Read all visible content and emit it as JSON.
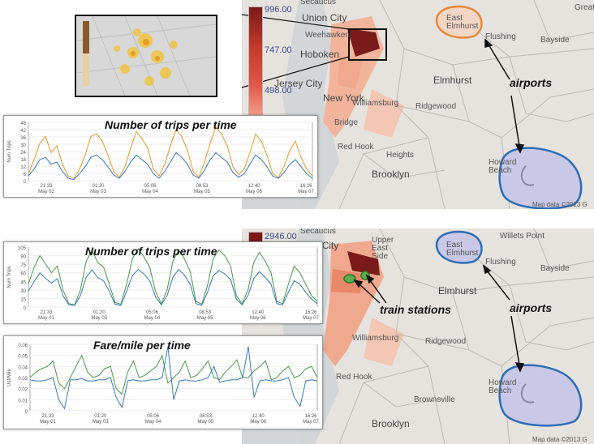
{
  "top_map": {
    "legend": [
      "996.00",
      "747.00",
      "498.00"
    ],
    "labels": [
      "Secaucus",
      "Union City",
      "Weehawken",
      "Hoboken",
      "Jersey City",
      "New York",
      "Brooklyn",
      "Heights",
      "Elmhurst",
      "East Elmhurst",
      "Flushing",
      "Bayside",
      "Howard Beach",
      "Ridgewood",
      "Williamsburg",
      "Red Hook",
      "Bridge",
      "Great"
    ],
    "callout_airports": "airports",
    "attribution": "Map data ©2013 G",
    "colors": {
      "legend_dark": "#7a1a1a",
      "legend_mid": "#d94a3a",
      "legend_light": "#f4a08a",
      "airport_laguardia": "#e8883a",
      "airport_jfk": "#2e6db4"
    }
  },
  "top_chart": {
    "title": "Number of trips per time",
    "ylabel": "Num Trips",
    "chart_data": {
      "type": "line",
      "title": "Number of trips per time",
      "ylabel": "Num Trips",
      "xlabel": "",
      "ylim": [
        0,
        50
      ],
      "y_ticks": [
        "48",
        "42",
        "36",
        "30",
        "24",
        "18",
        "12",
        "6",
        "0"
      ],
      "x_ticks": [
        [
          "21:33",
          "May 02"
        ],
        [
          "01:20",
          "May 03"
        ],
        [
          "05:06",
          "May 04"
        ],
        [
          "08:53",
          "May 05"
        ],
        [
          "12:40",
          "May 06"
        ],
        [
          "16:26",
          "May 07"
        ]
      ],
      "series": [
        {
          "color": "#e89a30",
          "values": [
            6,
            18,
            32,
            38,
            24,
            30,
            14,
            4,
            2,
            10,
            22,
            38,
            40,
            34,
            22,
            8,
            3,
            12,
            28,
            42,
            36,
            28,
            10,
            4,
            14,
            30,
            44,
            38,
            26,
            8,
            3,
            16,
            32,
            46,
            40,
            30,
            12,
            5,
            10,
            24,
            40,
            34,
            22,
            6,
            3,
            12,
            26,
            34,
            20,
            10,
            4
          ]
        },
        {
          "color": "#3a7ab8",
          "values": [
            4,
            10,
            18,
            20,
            14,
            16,
            8,
            2,
            1,
            6,
            12,
            20,
            22,
            18,
            12,
            5,
            2,
            8,
            16,
            22,
            18,
            14,
            6,
            2,
            8,
            16,
            24,
            20,
            14,
            5,
            2,
            9,
            18,
            24,
            20,
            16,
            7,
            3,
            6,
            14,
            22,
            18,
            12,
            4,
            2,
            7,
            14,
            18,
            12,
            6,
            2
          ]
        }
      ]
    }
  },
  "bottom_map": {
    "legend": [
      "2946.00"
    ],
    "labels": [
      "Secaucus",
      "Union City",
      "Upper East Side",
      "East Elmhurst",
      "Flushing",
      "Bayside",
      "Elmhurst",
      "Brooklyn",
      "Howard Beach",
      "Brownsville",
      "Ridgewood",
      "Williamsburg",
      "Red Hook",
      "Willets Point"
    ],
    "callout_train": "train stations",
    "callout_airports": "airports",
    "attribution": "Map data ©2013 G"
  },
  "bottom_chart_trips": {
    "title": "Number of trips per time",
    "chart_data": {
      "type": "line",
      "title": "Number of trips per time",
      "ylabel": "Num Trips",
      "xlabel": "",
      "ylim": [
        0,
        105
      ],
      "y_ticks": [
        "105",
        "90",
        "75",
        "60",
        "45",
        "30",
        "15",
        "0"
      ],
      "x_ticks": [
        [
          "21:33",
          "May 01"
        ],
        [
          "01:20",
          "May 03"
        ],
        [
          "05:06",
          "May 04"
        ],
        [
          "08:53",
          "May 05"
        ],
        [
          "12:40",
          "May 06"
        ],
        [
          "16:26",
          "May 07"
        ]
      ],
      "series": [
        {
          "color": "#4a9a48",
          "values": [
            40,
            70,
            90,
            75,
            60,
            72,
            30,
            6,
            4,
            30,
            80,
            100,
            78,
            70,
            40,
            8,
            5,
            40,
            85,
            102,
            88,
            70,
            28,
            6,
            30,
            80,
            100,
            85,
            62,
            10,
            5,
            38,
            85,
            100,
            90,
            72,
            20,
            6,
            30,
            78,
            96,
            80,
            60,
            10,
            6,
            40,
            72,
            60,
            40,
            20,
            10
          ]
        },
        {
          "color": "#3a7ab8",
          "values": [
            28,
            45,
            60,
            50,
            42,
            50,
            20,
            4,
            3,
            20,
            52,
            65,
            52,
            46,
            28,
            5,
            3,
            28,
            55,
            66,
            58,
            46,
            18,
            4,
            20,
            52,
            66,
            56,
            40,
            6,
            3,
            26,
            55,
            64,
            58,
            48,
            14,
            4,
            20,
            50,
            62,
            52,
            40,
            6,
            4,
            26,
            46,
            40,
            26,
            14,
            6
          ]
        }
      ]
    }
  },
  "bottom_chart_fare": {
    "title": "Fare/mile per time",
    "chart_data": {
      "type": "line",
      "title": "Fare/mile per time",
      "ylabel": "Ust/Mile",
      "xlabel": "",
      "ylim": [
        0,
        0.06
      ],
      "y_ticks": [
        "0.06",
        "0.05",
        "0.04",
        "0.03",
        "0.02",
        "0.01",
        "0"
      ],
      "x_ticks": [
        [
          "21:33",
          "May 01"
        ],
        [
          "01:20",
          "May 03"
        ],
        [
          "05:06",
          "May 04"
        ],
        [
          "08:53",
          "May 05"
        ],
        [
          "12:40",
          "May 06"
        ],
        [
          "16:26",
          "May 07"
        ]
      ],
      "series": [
        {
          "color": "#4a9a48",
          "values": [
            0.03,
            0.035,
            0.038,
            0.04,
            0.045,
            0.025,
            0.02,
            0.03,
            0.04,
            0.05,
            0.035,
            0.03,
            0.032,
            0.038,
            0.04,
            0.02,
            0.015,
            0.035,
            0.045,
            0.03,
            0.032,
            0.036,
            0.04,
            0.05,
            0.025,
            0.03,
            0.035,
            0.045,
            0.03,
            0.032,
            0.038,
            0.045,
            0.03,
            0.028,
            0.035,
            0.04,
            0.046,
            0.03,
            0.03,
            0.036,
            0.04,
            0.045,
            0.028,
            0.03,
            0.036,
            0.04,
            0.03,
            0.032,
            0.038,
            0.04,
            0.03
          ]
        },
        {
          "color": "#3a7ab8",
          "values": [
            0.028,
            0.027,
            0.027,
            0.028,
            0.03,
            0.01,
            0.002,
            0.028,
            0.028,
            0.029,
            0.027,
            0.027,
            0.028,
            0.028,
            0.03,
            0.012,
            0.003,
            0.027,
            0.028,
            0.027,
            0.027,
            0.028,
            0.028,
            0.03,
            0.058,
            0.01,
            0.027,
            0.028,
            0.027,
            0.027,
            0.028,
            0.03,
            0.04,
            0.026,
            0.027,
            0.028,
            0.028,
            0.03,
            0.058,
            0.012,
            0.027,
            0.028,
            0.027,
            0.027,
            0.028,
            0.03,
            0.012,
            0.004,
            0.027,
            0.028,
            0.027
          ]
        }
      ]
    }
  }
}
